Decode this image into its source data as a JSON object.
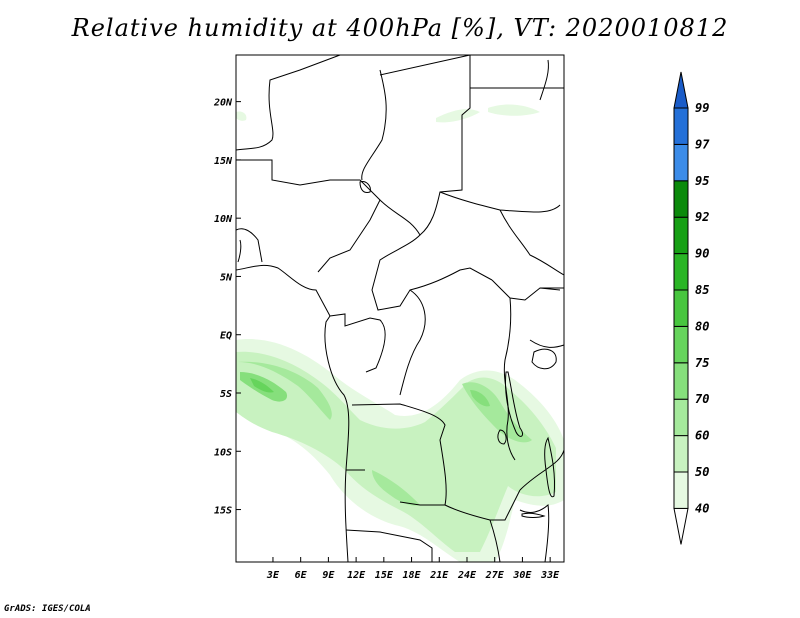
{
  "title": "Relative humidity at 400hPa [%], VT: 2020010812",
  "credit": "GrADS: IGES/COLA",
  "map": {
    "lon_range": [
      -1,
      34.5
    ],
    "lat_range": [
      -19.5,
      24
    ],
    "x_ticks": [
      "3E",
      "6E",
      "9E",
      "12E",
      "15E",
      "18E",
      "21E",
      "24E",
      "27E",
      "30E",
      "33E"
    ],
    "x_tick_values": [
      3,
      6,
      9,
      12,
      15,
      18,
      21,
      24,
      27,
      30,
      33
    ],
    "y_ticks": [
      "20N",
      "15N",
      "10N",
      "5N",
      "EQ",
      "5S",
      "10S",
      "15S"
    ],
    "y_tick_values": [
      20,
      15,
      10,
      5,
      0,
      -5,
      -10,
      -15
    ]
  },
  "colorbar": {
    "labels": [
      "40",
      "50",
      "60",
      "70",
      "75",
      "80",
      "85",
      "90",
      "92",
      "95",
      "97",
      "99"
    ],
    "colors": [
      "#ffffff",
      "#e6f9e2",
      "#c8f2c0",
      "#a5e99c",
      "#86df7c",
      "#66d45c",
      "#48c63f",
      "#2ab525",
      "#17a015",
      "#0b8a0b",
      "#3c8ce8",
      "#2470d8",
      "#1a5cc8"
    ]
  }
}
